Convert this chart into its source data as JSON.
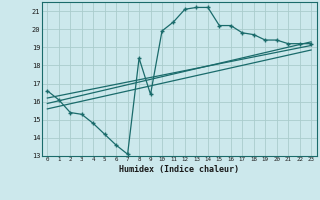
{
  "xlabel": "Humidex (Indice chaleur)",
  "bg_color": "#cce8ec",
  "grid_color": "#aacccc",
  "line_color": "#1a6b6b",
  "xlim": [
    -0.5,
    23.5
  ],
  "ylim": [
    13,
    21.5
  ],
  "yticks": [
    13,
    14,
    15,
    16,
    17,
    18,
    19,
    20,
    21
  ],
  "xticks": [
    0,
    1,
    2,
    3,
    4,
    5,
    6,
    7,
    8,
    9,
    10,
    11,
    12,
    13,
    14,
    15,
    16,
    17,
    18,
    19,
    20,
    21,
    22,
    23
  ],
  "line1_x": [
    0,
    1,
    2,
    3,
    4,
    5,
    6,
    7,
    8,
    9,
    10,
    11,
    12,
    13,
    14,
    15,
    16,
    17,
    18,
    19,
    20,
    21,
    22,
    23
  ],
  "line1_y": [
    16.6,
    16.1,
    15.4,
    15.3,
    14.8,
    14.2,
    13.6,
    13.1,
    18.4,
    16.4,
    19.9,
    20.4,
    21.1,
    21.2,
    21.2,
    20.2,
    20.2,
    19.8,
    19.7,
    19.4,
    19.4,
    19.2,
    19.2,
    19.2
  ],
  "line2_x": [
    0,
    23
  ],
  "line2_y": [
    15.9,
    19.3
  ],
  "line3_x": [
    0,
    23
  ],
  "line3_y": [
    15.6,
    18.85
  ],
  "line4_x": [
    0,
    23
  ],
  "line4_y": [
    16.2,
    19.1
  ]
}
